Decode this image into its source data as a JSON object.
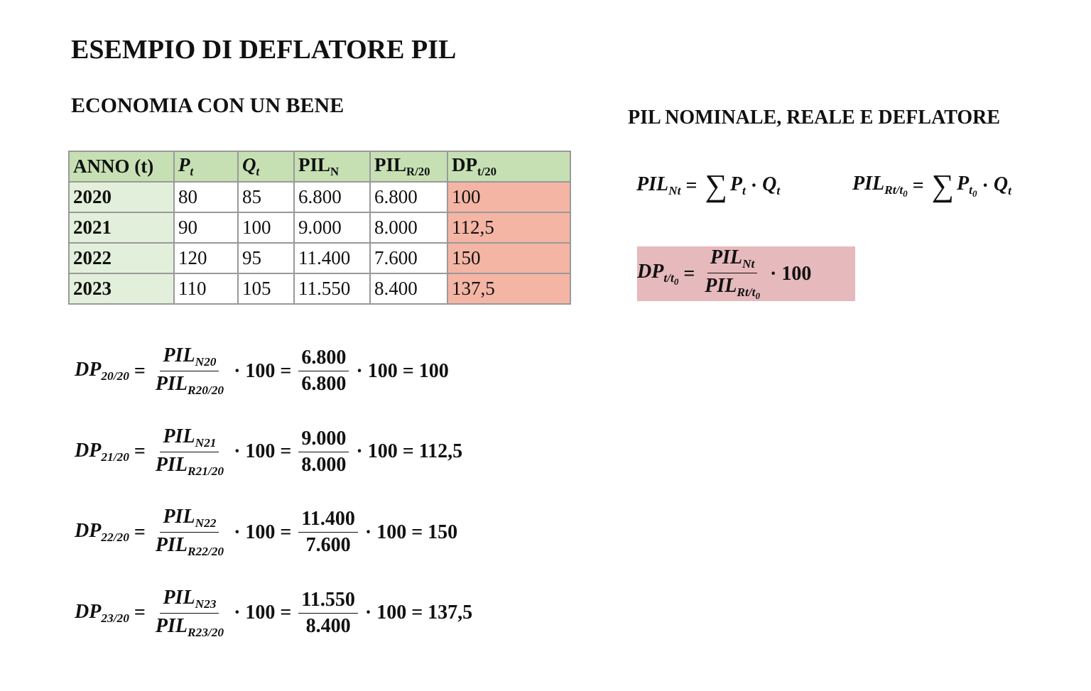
{
  "title": "ESEMPIO DI DEFLATORE PIL",
  "subtitle": "ECONOMIA CON UN BENE",
  "table": {
    "header": [
      "ANNO (t)",
      {
        "t": "P",
        "sub": "t"
      },
      {
        "t": "Q",
        "sub": "t"
      },
      {
        "t": "PIL",
        "sub": "N"
      },
      {
        "t": "PIL",
        "sub": "R/20"
      },
      {
        "t": "DP",
        "sub": "t/20"
      }
    ],
    "rows": [
      [
        "2020",
        "80",
        "85",
        "6.800",
        "6.800",
        "100"
      ],
      [
        "2021",
        "90",
        "100",
        "9.000",
        "8.000",
        "112,5"
      ],
      [
        "2022",
        "120",
        "95",
        "11.400",
        "7.600",
        "150"
      ],
      [
        "2023",
        "110",
        "105",
        "11.550",
        "8.400",
        "137,5"
      ]
    ]
  },
  "formulas": {
    "title": "PIL NOMINALE, REALE E DEFLATORE",
    "general": [
      [
        {
          "t": "PIL",
          "sub": "Nt"
        },
        "=",
        "∑",
        {
          "t": "P",
          "sub": "t"
        },
        "·",
        {
          "t": "Q",
          "sub": "t"
        }
      ],
      [
        {
          "t": "PIL",
          "sub": "Rt/t",
          "subsub": "0"
        },
        "=",
        "∑",
        {
          "t": "P",
          "sub": "t",
          "subsub": "0"
        },
        "·",
        {
          "t": "Q",
          "sub": "t"
        }
      ]
    ],
    "deflator": [
      {
        "t": "DP",
        "sub": "t/t",
        "subsub": "0"
      },
      "=",
      {
        "num": [
          {
            "t": "PIL",
            "sub": "Nt"
          }
        ],
        "den": [
          {
            "t": "PIL",
            "sub": "Rt/t",
            "subsub": "0"
          }
        ]
      },
      "·",
      "100"
    ]
  },
  "examples": [
    [
      {
        "t": "DP",
        "sub": "20/20"
      },
      "=",
      {
        "num": [
          {
            "t": "PIL",
            "sub": "N20"
          }
        ],
        "den": [
          {
            "t": "PIL",
            "sub": "R20/20"
          }
        ]
      },
      "·",
      "100",
      "=",
      {
        "num": [
          "6.800"
        ],
        "den": [
          "6.800"
        ]
      },
      "·",
      "100",
      "=",
      "100"
    ],
    [
      {
        "t": "DP",
        "sub": "21/20"
      },
      "=",
      {
        "num": [
          {
            "t": "PIL",
            "sub": "N21"
          }
        ],
        "den": [
          {
            "t": "PIL",
            "sub": "R21/20"
          }
        ]
      },
      "·",
      "100",
      "=",
      {
        "num": [
          "9.000"
        ],
        "den": [
          "8.000"
        ]
      },
      "·",
      "100",
      "=",
      "112,5"
    ],
    [
      {
        "t": "DP",
        "sub": "22/20"
      },
      "=",
      {
        "num": [
          {
            "t": "PIL",
            "sub": "N22"
          }
        ],
        "den": [
          {
            "t": "PIL",
            "sub": "R22/20"
          }
        ]
      },
      "·",
      "100",
      "=",
      {
        "num": [
          "11.400"
        ],
        "den": [
          "7.600"
        ]
      },
      "·",
      "100",
      "=",
      "150"
    ],
    [
      {
        "t": "DP",
        "sub": "23/20"
      },
      "=",
      {
        "num": [
          {
            "t": "PIL",
            "sub": "N23"
          }
        ],
        "den": [
          {
            "t": "PIL",
            "sub": "R23/20"
          }
        ]
      },
      "·",
      "100",
      "=",
      {
        "num": [
          "11.550"
        ],
        "den": [
          "8.400"
        ]
      },
      "·",
      "100",
      "=",
      "137,5"
    ]
  ]
}
